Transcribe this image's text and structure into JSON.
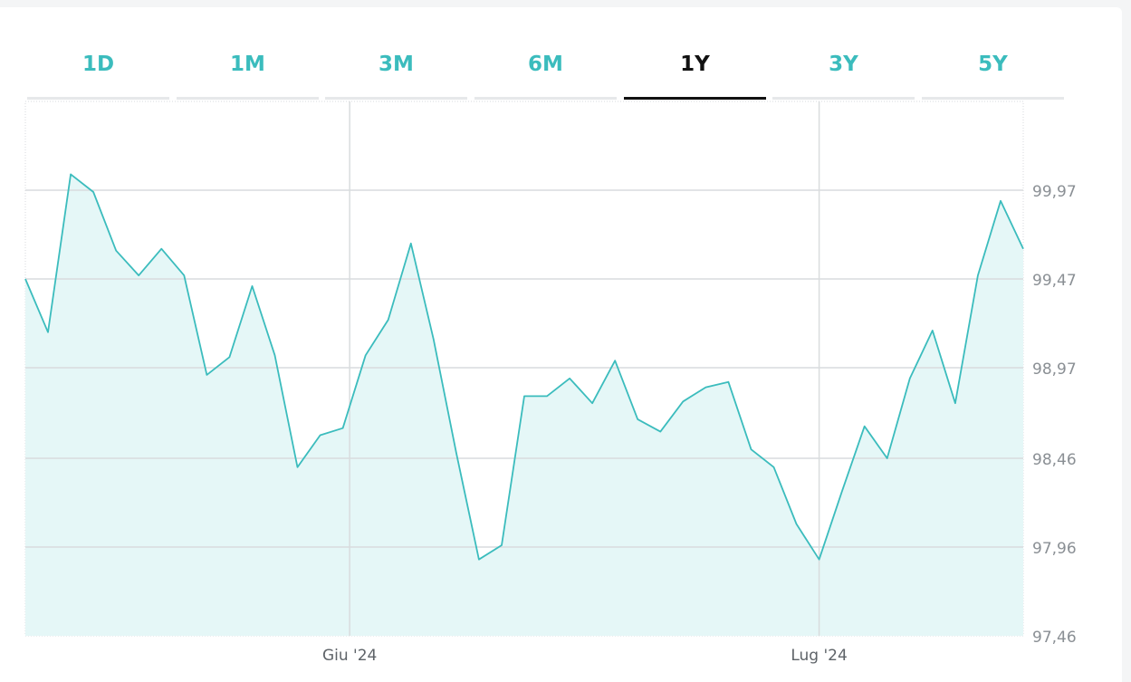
{
  "range_tabs": [
    {
      "label": "1D",
      "active": false
    },
    {
      "label": "1M",
      "active": false
    },
    {
      "label": "3M",
      "active": false
    },
    {
      "label": "6M",
      "active": false
    },
    {
      "label": "1Y",
      "active": true
    },
    {
      "label": "3Y",
      "active": false
    },
    {
      "label": "5Y",
      "active": false
    }
  ],
  "colors": {
    "accent": "#3bbcbd",
    "area_fill": "#e5f7f7",
    "active_tab": "#111111",
    "grid": "#d9dcde"
  },
  "chart_data": {
    "type": "area",
    "title": "",
    "xlabel": "",
    "ylabel": "",
    "ylim": [
      97.46,
      100.47
    ],
    "y_ticks": [
      "99,97",
      "99,47",
      "98,97",
      "98,46",
      "97,96",
      "97,46"
    ],
    "y_tick_values": [
      99.97,
      99.47,
      98.97,
      98.46,
      97.96,
      97.46
    ],
    "x_ticks": [
      {
        "label": "Giu '24",
        "index": 14.3
      },
      {
        "label": "Lug '24",
        "index": 35.0
      }
    ],
    "grid": true,
    "series": [
      {
        "values": [
          99.47,
          99.17,
          100.06,
          99.96,
          99.63,
          99.49,
          99.64,
          99.49,
          98.93,
          99.03,
          99.43,
          99.04,
          98.41,
          98.59,
          98.63,
          99.04,
          99.24,
          99.67,
          99.13,
          98.49,
          97.89,
          97.97,
          98.81,
          98.81,
          98.91,
          98.77,
          99.01,
          98.68,
          98.61,
          98.78,
          98.86,
          98.89,
          98.51,
          98.41,
          98.09,
          97.89,
          98.27,
          98.64,
          98.46,
          98.91,
          99.18,
          98.77,
          99.49,
          99.91,
          99.64
        ]
      }
    ]
  }
}
